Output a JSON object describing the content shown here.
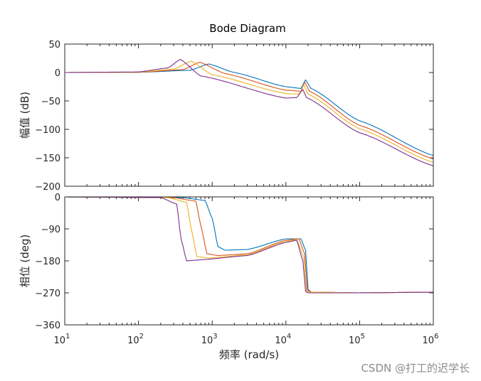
{
  "chart_data": {
    "type": "line",
    "title": "Bode Diagram",
    "xlabel": "频率  (rad/s)",
    "xscale": "log",
    "xlim": [
      10,
      1000000
    ],
    "x_ticks": [
      {
        "value": 10,
        "base": "10",
        "exp": "1"
      },
      {
        "value": 100,
        "base": "10",
        "exp": "2"
      },
      {
        "value": 1000,
        "base": "10",
        "exp": "3"
      },
      {
        "value": 10000,
        "base": "10",
        "exp": "4"
      },
      {
        "value": 100000,
        "base": "10",
        "exp": "5"
      },
      {
        "value": 1000000,
        "base": "10",
        "exp": "6"
      }
    ],
    "magnitude": {
      "ylabel": "幅值 (dB)",
      "ylim": [
        -200,
        50
      ],
      "y_ticks": [
        "50",
        "0",
        "−50",
        "−100",
        "−150",
        "−200"
      ],
      "y_tick_values": [
        50,
        0,
        -50,
        -100,
        -150,
        -200
      ]
    },
    "phase": {
      "ylabel": "相位 (deg)",
      "ylim": [
        -360,
        0
      ],
      "y_ticks": [
        "0",
        "−90",
        "−180",
        "−270",
        "−360"
      ],
      "y_tick_values": [
        0,
        -90,
        -180,
        -270,
        -360
      ]
    },
    "series": [
      {
        "color": "#0072BD",
        "magnitude": [
          [
            10,
            0
          ],
          [
            100,
            0.3
          ],
          [
            500,
            4
          ],
          [
            900,
            15
          ],
          [
            2000,
            0
          ],
          [
            10000,
            -25
          ],
          [
            16000,
            -28
          ],
          [
            18500,
            -13
          ],
          [
            22000,
            -28
          ],
          [
            100000,
            -85
          ],
          [
            1000000,
            -146
          ]
        ],
        "phase": [
          [
            10,
            0
          ],
          [
            400,
            -2
          ],
          [
            800,
            -10
          ],
          [
            1000,
            -60
          ],
          [
            1200,
            -140
          ],
          [
            1500,
            -150
          ],
          [
            3000,
            -148
          ],
          [
            10000,
            -118
          ],
          [
            16000,
            -118
          ],
          [
            18500,
            -150
          ],
          [
            20000,
            -260
          ],
          [
            22000,
            -268
          ],
          [
            100000,
            -270
          ],
          [
            1000000,
            -268
          ]
        ]
      },
      {
        "color": "#D95319",
        "magnitude": [
          [
            10,
            0
          ],
          [
            100,
            0.4
          ],
          [
            400,
            5
          ],
          [
            680,
            18
          ],
          [
            1500,
            -2
          ],
          [
            10000,
            -31
          ],
          [
            16000,
            -33
          ],
          [
            18000,
            -17
          ],
          [
            21000,
            -33
          ],
          [
            100000,
            -93
          ],
          [
            1000000,
            -152
          ]
        ],
        "phase": [
          [
            10,
            0
          ],
          [
            300,
            -2
          ],
          [
            600,
            -12
          ],
          [
            700,
            -80
          ],
          [
            850,
            -160
          ],
          [
            1200,
            -165
          ],
          [
            3000,
            -160
          ],
          [
            10000,
            -122
          ],
          [
            15000,
            -118
          ],
          [
            18000,
            -160
          ],
          [
            19500,
            -262
          ],
          [
            22000,
            -268
          ],
          [
            100000,
            -270
          ],
          [
            1000000,
            -268
          ]
        ]
      },
      {
        "color": "#EDB120",
        "magnitude": [
          [
            10,
            0
          ],
          [
            100,
            0.5
          ],
          [
            300,
            6
          ],
          [
            520,
            20
          ],
          [
            1000,
            -4
          ],
          [
            10000,
            -37
          ],
          [
            15000,
            -38
          ],
          [
            17500,
            -22
          ],
          [
            20000,
            -38
          ],
          [
            100000,
            -99
          ],
          [
            1000000,
            -158
          ]
        ],
        "phase": [
          [
            10,
            0
          ],
          [
            250,
            -2
          ],
          [
            450,
            -15
          ],
          [
            520,
            -90
          ],
          [
            620,
            -168
          ],
          [
            900,
            -172
          ],
          [
            3000,
            -163
          ],
          [
            10000,
            -125
          ],
          [
            14000,
            -120
          ],
          [
            17500,
            -170
          ],
          [
            19000,
            -264
          ],
          [
            21000,
            -268
          ],
          [
            100000,
            -270
          ],
          [
            1000000,
            -268
          ]
        ]
      },
      {
        "color": "#7E2F8E",
        "magnitude": [
          [
            10,
            0
          ],
          [
            100,
            1
          ],
          [
            250,
            8
          ],
          [
            370,
            23
          ],
          [
            700,
            -6
          ],
          [
            10000,
            -45
          ],
          [
            14000,
            -44
          ],
          [
            17000,
            -30
          ],
          [
            19000,
            -44
          ],
          [
            100000,
            -106
          ],
          [
            1000000,
            -164
          ]
        ],
        "phase": [
          [
            10,
            0
          ],
          [
            200,
            -2
          ],
          [
            330,
            -20
          ],
          [
            380,
            -120
          ],
          [
            450,
            -180
          ],
          [
            700,
            -177
          ],
          [
            3000,
            -165
          ],
          [
            10000,
            -128
          ],
          [
            14000,
            -122
          ],
          [
            17000,
            -180
          ],
          [
            18500,
            -266
          ],
          [
            20000,
            -270
          ],
          [
            100000,
            -270
          ],
          [
            1000000,
            -268
          ]
        ]
      }
    ]
  },
  "watermark": "CSDN @打工的迟学长"
}
